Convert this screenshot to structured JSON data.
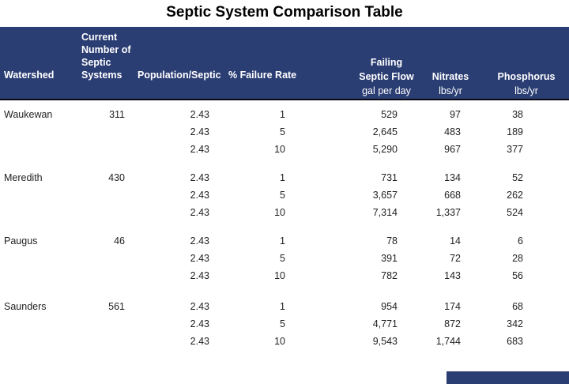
{
  "title": "Septic System Comparison Table",
  "colors": {
    "header_bg": "#2b3e73",
    "header_text": "#ffffff",
    "header_border_bottom": "#0b0b14",
    "body_text": "#1f1f1f",
    "page_bg": "#ffffff"
  },
  "table": {
    "headers": {
      "watershed": "Watershed",
      "systems": "Current Number of Septic Systems",
      "population": "Population/Septic",
      "failure": "% Failure Rate",
      "flow_line1": "Failing",
      "flow_line2": "Septic Flow",
      "flow_units": "gal per day",
      "nitrates": "Nitrates",
      "nitrates_units": "lbs/yr",
      "phosphorus": "Phosphorus",
      "phosphorus_units": "lbs/yr"
    },
    "groups": [
      {
        "watershed": "Waukewan",
        "systems": "311",
        "rows": [
          {
            "population": "2.43",
            "failure": "1",
            "flow": "529",
            "nitrates": "97",
            "phosphorus": "38"
          },
          {
            "population": "2.43",
            "failure": "5",
            "flow": "2,645",
            "nitrates": "483",
            "phosphorus": "189"
          },
          {
            "population": "2.43",
            "failure": "10",
            "flow": "5,290",
            "nitrates": "967",
            "phosphorus": "377"
          }
        ]
      },
      {
        "watershed": "Meredith",
        "systems": "430",
        "rows": [
          {
            "population": "2.43",
            "failure": "1",
            "flow": "731",
            "nitrates": "134",
            "phosphorus": "52"
          },
          {
            "population": "2.43",
            "failure": "5",
            "flow": "3,657",
            "nitrates": "668",
            "phosphorus": "262"
          },
          {
            "population": "2.43",
            "failure": "10",
            "flow": "7,314",
            "nitrates": "1,337",
            "phosphorus": "524"
          }
        ]
      },
      {
        "watershed": "Paugus",
        "systems": "46",
        "rows": [
          {
            "population": "2.43",
            "failure": "1",
            "flow": "78",
            "nitrates": "14",
            "phosphorus": "6"
          },
          {
            "population": "2.43",
            "failure": "5",
            "flow": "391",
            "nitrates": "72",
            "phosphorus": "28"
          },
          {
            "population": "2.43",
            "failure": "10",
            "flow": "782",
            "nitrates": "143",
            "phosphorus": "56"
          }
        ]
      },
      {
        "watershed": "Saunders",
        "systems": "561",
        "rows": [
          {
            "population": "2.43",
            "failure": "1",
            "flow": "954",
            "nitrates": "174",
            "phosphorus": "68"
          },
          {
            "population": "2.43",
            "failure": "5",
            "flow": "4,771",
            "nitrates": "872",
            "phosphorus": "342"
          },
          {
            "population": "2.43",
            "failure": "10",
            "flow": "9,543",
            "nitrates": "1,744",
            "phosphorus": "683"
          }
        ]
      }
    ]
  },
  "chart_data": {
    "type": "table",
    "title": "Septic System Comparison Table",
    "columns": [
      "Watershed",
      "Current Number of Septic Systems",
      "Population/Septic",
      "% Failure Rate",
      "Failing Septic Flow gal per day",
      "Nitrates lbs/yr",
      "Phosphorus lbs/yr"
    ],
    "rows": [
      [
        "Waukewan",
        311,
        2.43,
        1,
        529,
        97,
        38
      ],
      [
        "",
        null,
        2.43,
        5,
        2645,
        483,
        189
      ],
      [
        "",
        null,
        2.43,
        10,
        5290,
        967,
        377
      ],
      [
        "Meredith",
        430,
        2.43,
        1,
        731,
        134,
        52
      ],
      [
        "",
        null,
        2.43,
        5,
        3657,
        668,
        262
      ],
      [
        "",
        null,
        2.43,
        10,
        7314,
        1337,
        524
      ],
      [
        "Paugus",
        46,
        2.43,
        1,
        78,
        14,
        6
      ],
      [
        "",
        null,
        2.43,
        5,
        391,
        72,
        28
      ],
      [
        "",
        null,
        2.43,
        10,
        782,
        143,
        56
      ],
      [
        "Saunders",
        561,
        2.43,
        1,
        954,
        174,
        68
      ],
      [
        "",
        null,
        2.43,
        5,
        4771,
        872,
        342
      ],
      [
        "",
        null,
        2.43,
        10,
        9543,
        1744,
        683
      ]
    ]
  }
}
